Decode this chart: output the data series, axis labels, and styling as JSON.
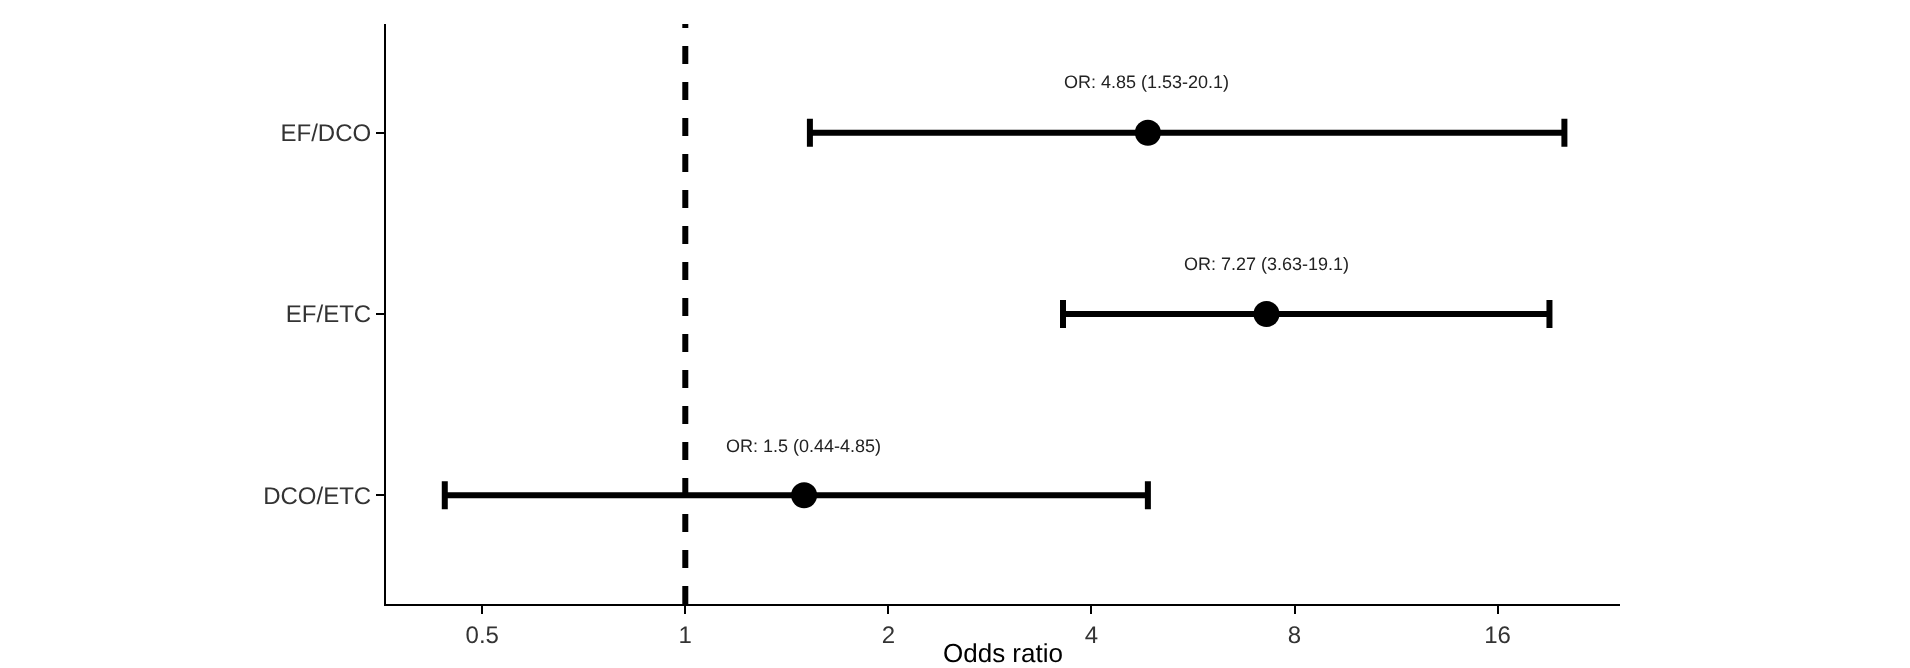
{
  "chart_data": {
    "type": "scatter",
    "orientation": "horizontal",
    "xlabel": "Odds ratio",
    "categories": [
      "EF/DCO",
      "EF/ETC",
      "DCO/ETC"
    ],
    "values": [
      4.85,
      7.27,
      1.5
    ],
    "errors": [
      [
        1.53,
        20.1
      ],
      [
        3.63,
        19.1
      ],
      [
        0.44,
        4.85
      ]
    ],
    "color": "#000000",
    "marker": "circle",
    "log": "x",
    "xlim": [
      0.36,
      24.3
    ],
    "xticks": [
      0.5,
      1,
      2,
      4,
      8,
      16
    ],
    "ref_lines": [
      {
        "axis": "x",
        "value": 1,
        "line_style": "dashed",
        "color": "#000000"
      }
    ],
    "annotations": [
      {
        "text": "OR: 4.85 (1.53-20.1)",
        "x": 4.85,
        "y": "EF/DCO"
      },
      {
        "text": "OR: 7.27 (3.63-19.1)",
        "x": 7.27,
        "y": "EF/ETC"
      },
      {
        "text": "OR: 1.5 (0.44-4.85)",
        "x": 1.5,
        "y": "DCO/ETC"
      }
    ],
    "grid": false
  }
}
